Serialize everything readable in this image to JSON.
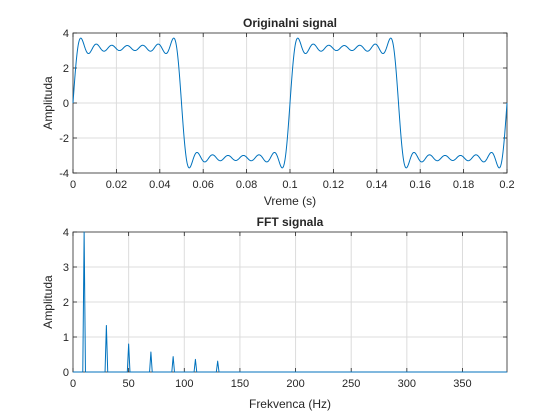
{
  "colors": {
    "series": "#0072bd",
    "axis": "#262626",
    "grid": "#dcdcdc",
    "background": "#ffffff"
  },
  "chart_data": [
    {
      "type": "line",
      "title": "Originalni signal",
      "xlabel": "Vreme (s)",
      "ylabel": "Amplituda",
      "xlim": [
        0,
        0.2
      ],
      "ylim": [
        -4,
        4
      ],
      "xticks": [
        0,
        0.02,
        0.04,
        0.06,
        0.08,
        0.1,
        0.12,
        0.14,
        0.16,
        0.18,
        0.2
      ],
      "xtick_labels": [
        "0",
        "0.02",
        "0.04",
        "0.06",
        "0.08",
        "0.1",
        "0.12",
        "0.14",
        "0.16",
        "0.18",
        "0.2"
      ],
      "yticks": [
        -4,
        -2,
        0,
        2,
        4
      ],
      "ytick_labels": [
        "-4",
        "-2",
        "0",
        "2",
        "4"
      ],
      "grid": true,
      "signal": {
        "kind": "odd-harmonic square wave sum",
        "fundamental_hz": 10,
        "harmonic_amplitudes": [
          4,
          1.333,
          0.8,
          0.571,
          0.444,
          0.364,
          0.308
        ]
      }
    },
    {
      "type": "line",
      "title": "FFT signala",
      "xlabel": "Frekvenca (Hz)",
      "ylabel": "Amplituda",
      "xlim": [
        0,
        390
      ],
      "ylim": [
        0,
        4
      ],
      "xticks": [
        0,
        50,
        100,
        150,
        200,
        250,
        300,
        350
      ],
      "xtick_labels": [
        "0",
        "50",
        "100",
        "150",
        "200",
        "250",
        "300",
        "350"
      ],
      "yticks": [
        0,
        1,
        2,
        3,
        4
      ],
      "ytick_labels": [
        "0",
        "1",
        "2",
        "3",
        "4"
      ],
      "grid": true,
      "peaks": [
        {
          "x": 10,
          "y": 4
        },
        {
          "x": 30,
          "y": 1.33
        },
        {
          "x": 50,
          "y": 0.8
        },
        {
          "x": 70,
          "y": 0.57
        },
        {
          "x": 90,
          "y": 0.44
        },
        {
          "x": 110,
          "y": 0.36
        },
        {
          "x": 130,
          "y": 0.31
        }
      ]
    }
  ]
}
